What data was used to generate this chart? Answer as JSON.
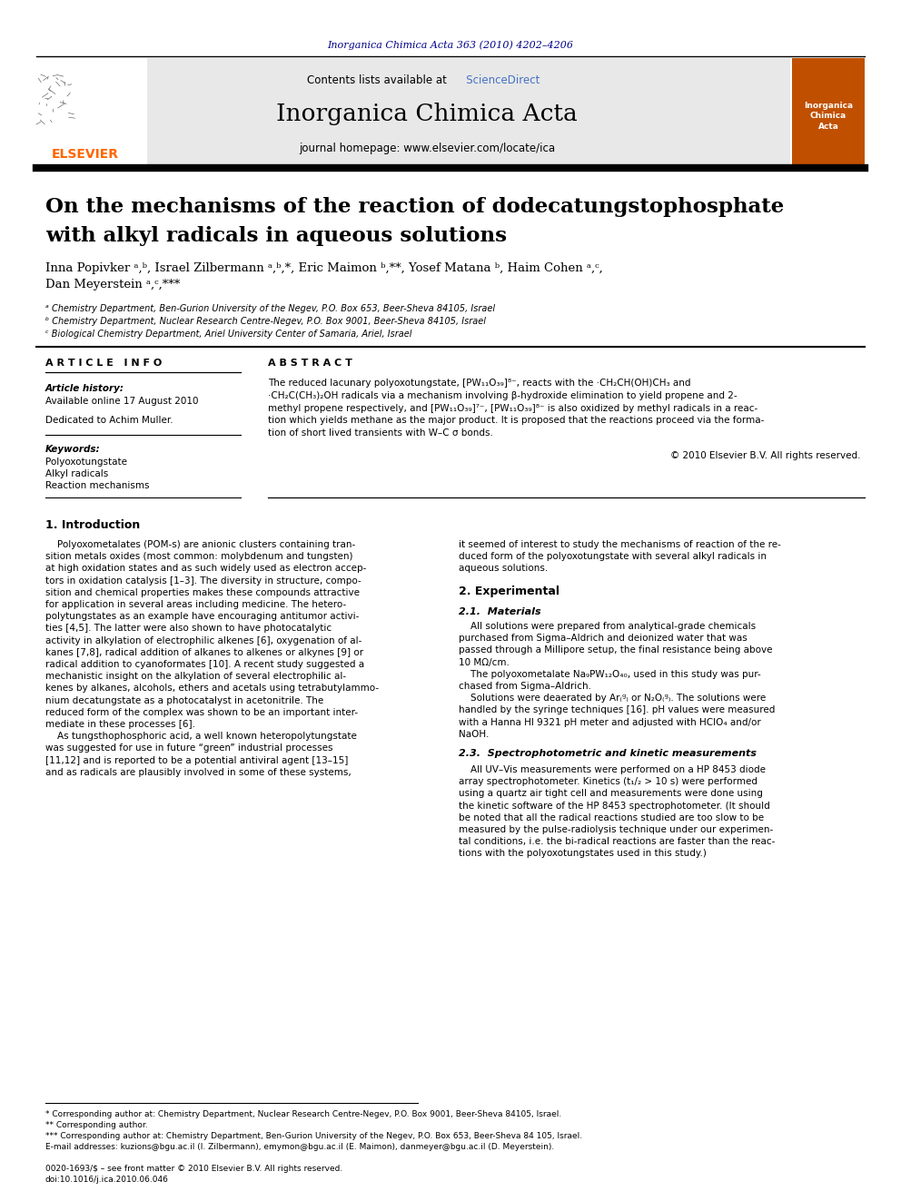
{
  "bg_color": "#ffffff",
  "header_citation": "Inorganica Chimica Acta 363 (2010) 4202–4206",
  "header_citation_color": "#00008B",
  "journal_name": "Inorganica Chimica Acta",
  "journal_homepage": "journal homepage: www.elsevier.com/locate/ica",
  "contents_text": "Contents lists available at ScienceDirect",
  "sciencedirect_color": "#4472C4",
  "header_bg": "#E8E8E8",
  "elsevier_color": "#FF6600",
  "cover_bg": "#C05000",
  "article_title_line1": "On the mechanisms of the reaction of dodecatungstophosphate",
  "article_title_line2": "with alkyl radicals in aqueous solutions",
  "authors": "Inna Popivker ᵃ,ᵇ, Israel Zilbermann ᵃ,ᵇ,*, Eric Maimon ᵇ,**, Yosef Matana ᵇ, Haim Cohen ᵃ,ᶜ,",
  "authors_line2": "Dan Meyerstein ᵃ,ᶜ,***",
  "affil_a": "ᵃ Chemistry Department, Ben-Gurion University of the Negev, P.O. Box 653, Beer-Sheva 84105, Israel",
  "affil_b": "ᵇ Chemistry Department, Nuclear Research Centre-Negev, P.O. Box 9001, Beer-Sheva 84105, Israel",
  "affil_c": "ᶜ Biological Chemistry Department, Ariel University Center of Samaria, Ariel, Israel",
  "article_info_header": "A R T I C L E   I N F O",
  "abstract_header": "A B S T R A C T",
  "article_history_label": "Article history:",
  "available_online": "Available online 17 August 2010",
  "dedicated": "Dedicated to Achim Muller.",
  "keywords_label": "Keywords:",
  "keyword1": "Polyoxotungstate",
  "keyword2": "Alkyl radicals",
  "keyword3": "Reaction mechanisms",
  "copyright_text": "© 2010 Elsevier B.V. All rights reserved.",
  "intro_header": "1. Introduction",
  "experimental_header": "2. Experimental",
  "materials_header": "2.1.  Materials",
  "spectro_header": "2.3.  Spectrophotometric and kinetic measurements",
  "footnote1": "* Corresponding author at: Chemistry Department, Nuclear Research Centre-Negev, P.O. Box 9001, Beer-Sheva 84105, Israel.",
  "footnote2": "** Corresponding author.",
  "footnote3": "*** Corresponding author at: Chemistry Department, Ben-Gurion University of the Negev, P.O. Box 653, Beer-Sheva 84 105, Israel.",
  "email_line": "E-mail addresses: kuzions@bgu.ac.il (I. Zilbermann), emymon@bgu.ac.il (E. Maimon), danmeyer@bgu.ac.il (D. Meyerstein).",
  "issn_line": "0020-1693/$ – see front matter © 2010 Elsevier B.V. All rights reserved.",
  "doi_line": "doi:10.1016/j.ica.2010.06.046"
}
